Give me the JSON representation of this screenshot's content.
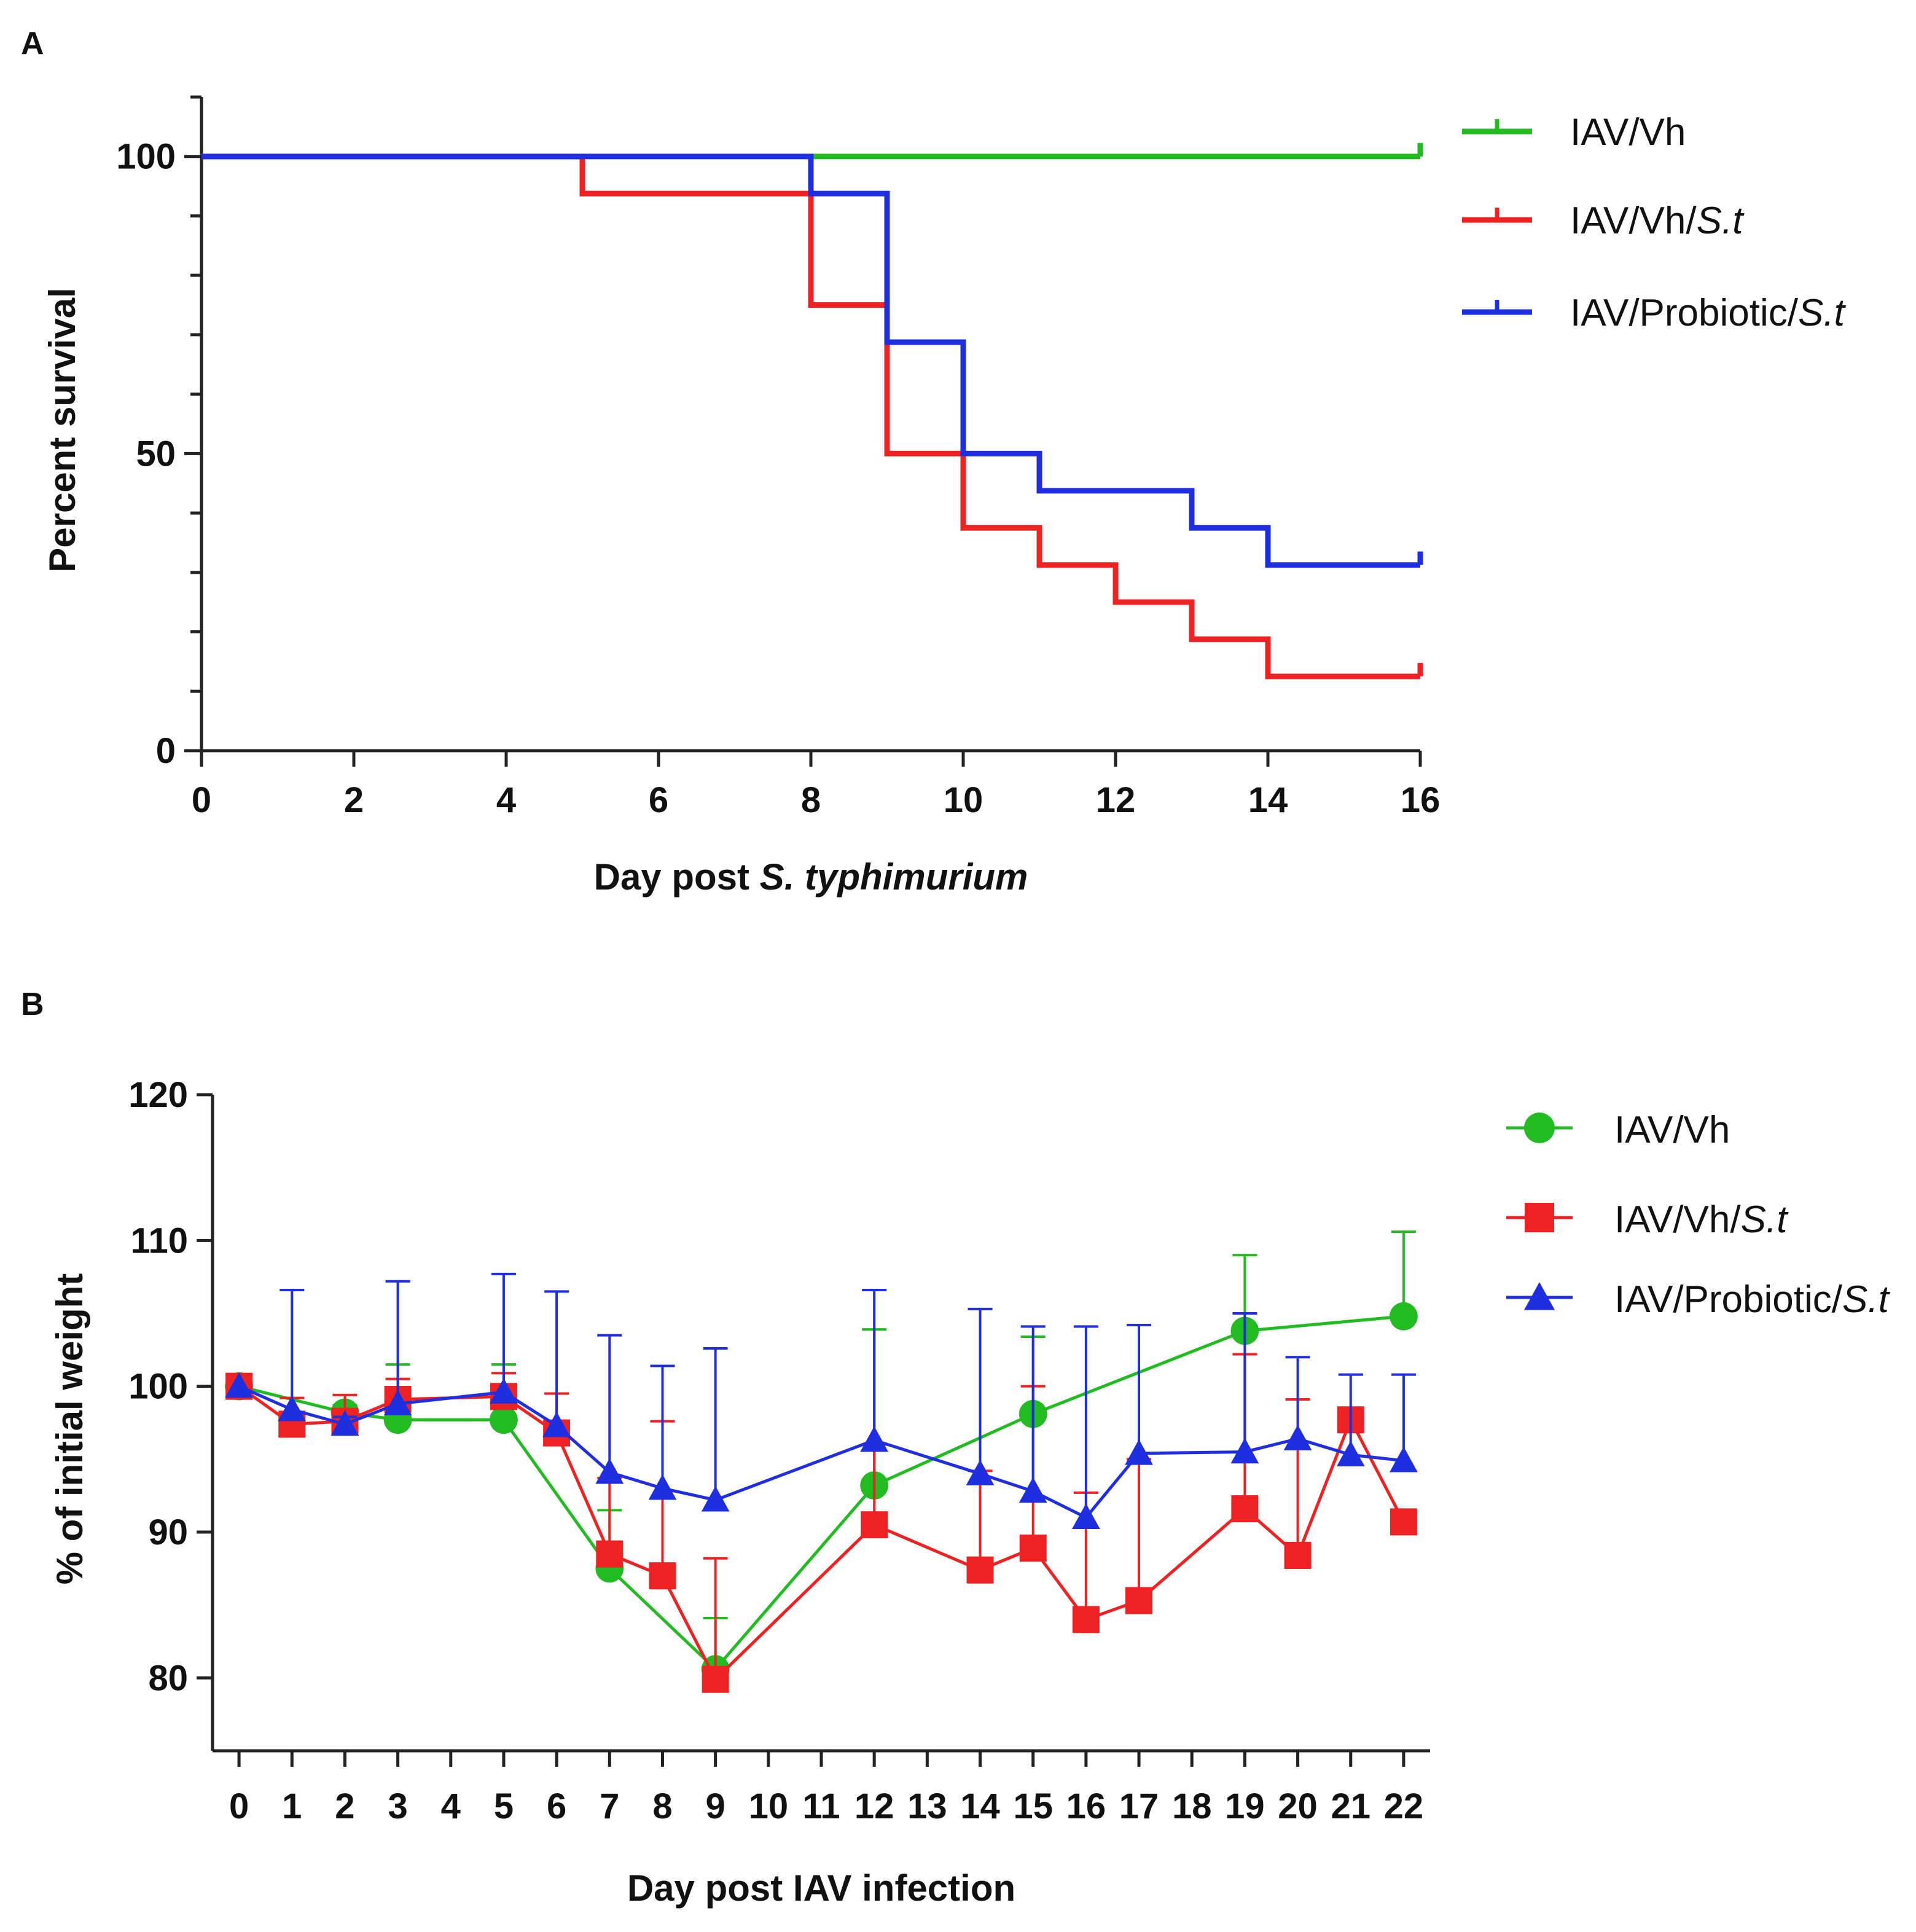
{
  "chart_data": [
    {
      "panel": "A",
      "type": "line",
      "subtype": "kaplan-meier step",
      "title": "",
      "xlabel": "Day post S. typhimurium",
      "xlabel_parts": [
        "Day post ",
        "S. typhimurium"
      ],
      "ylabel": "Percent survival",
      "xlim": [
        0,
        16
      ],
      "ylim": [
        0,
        110
      ],
      "xticks": [
        0,
        2,
        4,
        6,
        8,
        10,
        12,
        14,
        16
      ],
      "yticks": [
        0,
        50,
        100
      ],
      "legend_position": "right",
      "series": [
        {
          "name": "IAV/Vh",
          "label_plain": "IAV/Vh",
          "label_italic": "",
          "color": "#22bb22",
          "x": [
            0,
            16
          ],
          "y": [
            100,
            100
          ]
        },
        {
          "name": "IAV/Vh/S.t",
          "label_plain": "IAV/Vh/",
          "label_italic": "S.t",
          "color": "#ee2222",
          "x": [
            0,
            5,
            8,
            9,
            10,
            11,
            12,
            13,
            14,
            16
          ],
          "y": [
            100,
            93.75,
            75,
            50,
            37.5,
            31.25,
            25,
            18.75,
            12.5,
            12.5
          ]
        },
        {
          "name": "IAV/Probiotic/S.t",
          "label_plain": "IAV/Probiotic/",
          "label_italic": "S.t",
          "color": "#1f2fe0",
          "x": [
            0,
            8,
            9,
            10,
            11,
            13,
            14,
            16
          ],
          "y": [
            100,
            93.75,
            68.75,
            50,
            43.75,
            37.5,
            31.25,
            31.25
          ]
        }
      ]
    },
    {
      "panel": "B",
      "type": "line",
      "subtype": "mean with error bars",
      "title": "",
      "xlabel": "Day post IAV infection",
      "ylabel": "% of initial weight",
      "xlim": [
        -0.5,
        22.5
      ],
      "ylim": [
        75,
        120
      ],
      "categories": [
        "0",
        "1",
        "2",
        "3",
        "4",
        "5",
        "6",
        "7",
        "8",
        "9",
        "10",
        "11",
        "12",
        "13",
        "14",
        "15",
        "16",
        "17",
        "18",
        "19",
        "20",
        "21",
        "22"
      ],
      "yticks": [
        80,
        90,
        100,
        110,
        120
      ],
      "legend_position": "right",
      "series": [
        {
          "name": "IAV/Vh",
          "label_plain": "IAV/Vh",
          "label_italic": "",
          "color": "#22bb22",
          "marker": "circle",
          "x": [
            0,
            2,
            3,
            5,
            7,
            9,
            12,
            15,
            19,
            22
          ],
          "y": [
            100,
            98.2,
            97.7,
            97.7,
            87.5,
            80.6,
            93.2,
            98.1,
            103.8,
            104.8
          ],
          "err": [
            0,
            0.5,
            3.8,
            3.8,
            4,
            3.5,
            10.7,
            5.3,
            5.2,
            5.8
          ]
        },
        {
          "name": "IAV/Vh/S.t",
          "label_plain": "IAV/Vh/",
          "label_italic": "S.t",
          "color": "#ee2222",
          "marker": "square",
          "x": [
            0,
            1,
            2,
            3,
            5,
            6,
            7,
            8,
            9,
            12,
            14,
            15,
            16,
            17,
            19,
            20,
            21,
            22
          ],
          "y": [
            100,
            97.4,
            97.6,
            99.1,
            99.3,
            96.8,
            88.5,
            87.0,
            79.9,
            90.5,
            87.4,
            88.9,
            84.0,
            85.3,
            91.6,
            88.4,
            97.7,
            90.7
          ],
          "err": [
            0,
            1.8,
            1.8,
            1.4,
            1.6,
            2.7,
            5.2,
            10.6,
            8.3,
            5.5,
            6.8,
            11.1,
            8.7,
            9.7,
            10.6,
            10.7,
            0,
            0
          ]
        },
        {
          "name": "IAV/Probiotic/S.t",
          "label_plain": "IAV/Probiotic/",
          "label_italic": "S.t",
          "color": "#1f2fe0",
          "marker": "triangle",
          "x": [
            0,
            1,
            2,
            3,
            5,
            6,
            7,
            8,
            9,
            12,
            14,
            15,
            16,
            17,
            19,
            20,
            21,
            22
          ],
          "y": [
            100,
            98.4,
            97.4,
            98.8,
            99.6,
            97.3,
            94.1,
            93.0,
            92.2,
            96.3,
            94.0,
            92.8,
            91.0,
            95.4,
            95.5,
            96.4,
            95.3,
            94.9
          ],
          "err": [
            0,
            8.2,
            0.5,
            8.4,
            8.1,
            9.2,
            9.4,
            8.4,
            10.4,
            10.3,
            11.3,
            11.3,
            13.1,
            8.8,
            9.5,
            5.6,
            5.5,
            5.9
          ]
        }
      ]
    }
  ]
}
